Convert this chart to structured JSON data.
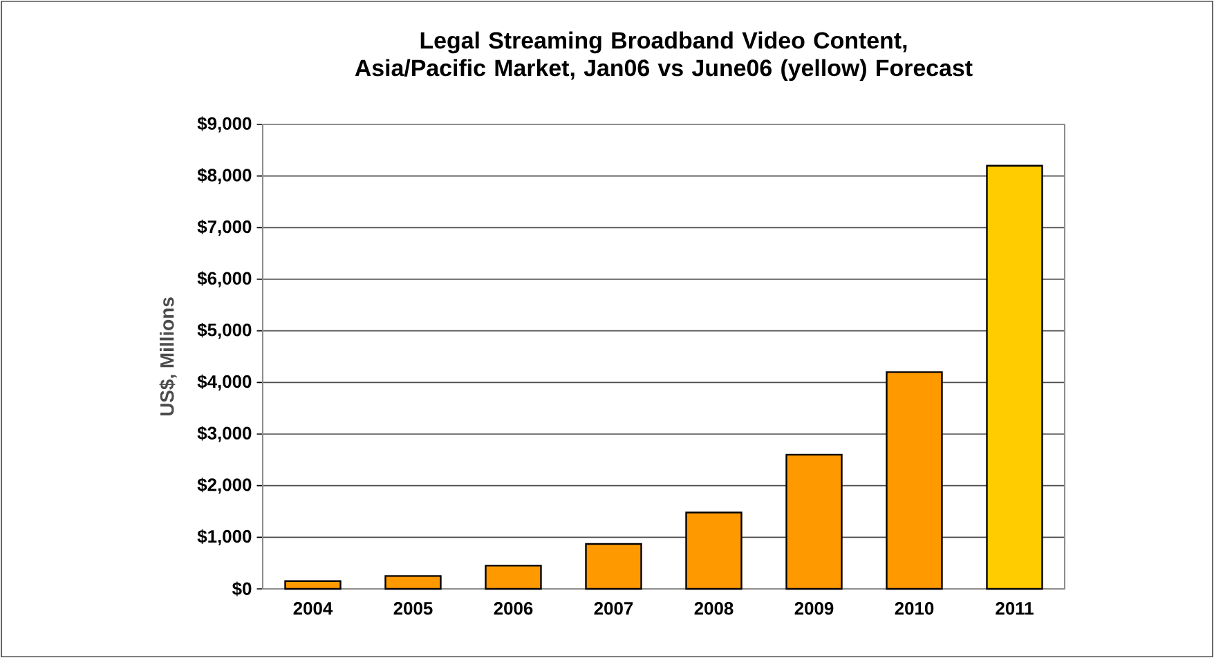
{
  "chart_data": {
    "type": "bar",
    "title": "Legal Streaming Broadband Video Content, Asia/Pacific Market, Jan06 vs June06 (yellow) Forecast",
    "ylabel": "US$, Millions",
    "categories": [
      "2004",
      "2005",
      "2006",
      "2007",
      "2008",
      "2009",
      "2010",
      "2011"
    ],
    "values": [
      150,
      250,
      450,
      870,
      1480,
      2600,
      4200,
      8200
    ],
    "colors": [
      "#ff9900",
      "#ff9900",
      "#ff9900",
      "#ff9900",
      "#ff9900",
      "#ff9900",
      "#ff9900",
      "#ffcc00"
    ],
    "ylim": [
      0,
      9000
    ],
    "yticks": [
      {
        "value": 0,
        "label": "$0"
      },
      {
        "value": 1000,
        "label": "$1,000"
      },
      {
        "value": 2000,
        "label": "$2,000"
      },
      {
        "value": 3000,
        "label": "$3,000"
      },
      {
        "value": 4000,
        "label": "$4,000"
      },
      {
        "value": 5000,
        "label": "$5,000"
      },
      {
        "value": 6000,
        "label": "$6,000"
      },
      {
        "value": 7000,
        "label": "$7,000"
      },
      {
        "value": 8000,
        "label": "$8,000"
      },
      {
        "value": 9000,
        "label": "$9,000"
      }
    ],
    "grid": "y"
  }
}
